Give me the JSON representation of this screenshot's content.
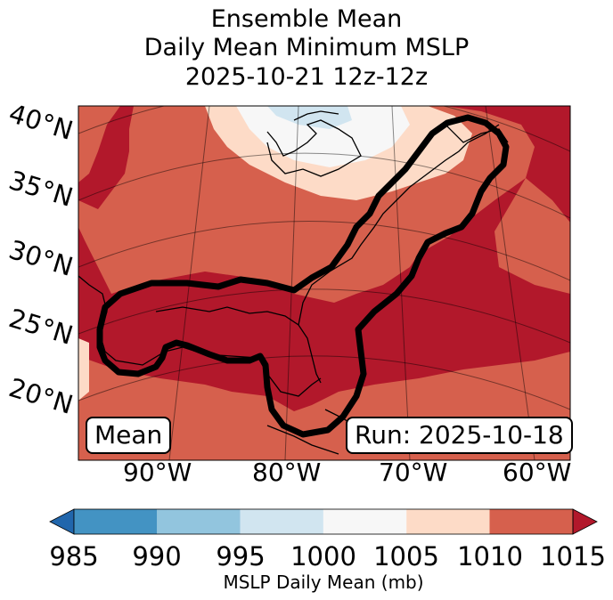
{
  "title": {
    "line1": "Ensemble Mean",
    "line2": "Daily Mean Minimum MSLP",
    "line3": "2025-10-21 12z-12z"
  },
  "map": {
    "latitude_labels": [
      "40°N",
      "35°N",
      "30°N",
      "25°N",
      "20°N"
    ],
    "longitude_labels": [
      "90°W",
      "80°W",
      "70°W",
      "60°W"
    ],
    "mean_label": "Mean",
    "run_label": "Run: 2025-10-18",
    "contour_color": "#000000",
    "coast_color": "#000000"
  },
  "colorbar": {
    "label": "MSLP Daily Mean (mb)",
    "ticks": [
      "985",
      "990",
      "995",
      "1000",
      "1005",
      "1010",
      "1015"
    ],
    "bins": [
      {
        "range": "<985",
        "color": "#2166ac"
      },
      {
        "range": "985-990",
        "color": "#4393c3"
      },
      {
        "range": "990-995",
        "color": "#92c5de"
      },
      {
        "range": "995-1000",
        "color": "#d1e5f0"
      },
      {
        "range": "1000-1005",
        "color": "#f7f7f7"
      },
      {
        "range": "1005-1010",
        "color": "#fddbc7"
      },
      {
        "range": "1010-1015",
        "color": "#d6604d"
      },
      {
        "range": ">1015",
        "color": "#b2182b"
      }
    ]
  }
}
